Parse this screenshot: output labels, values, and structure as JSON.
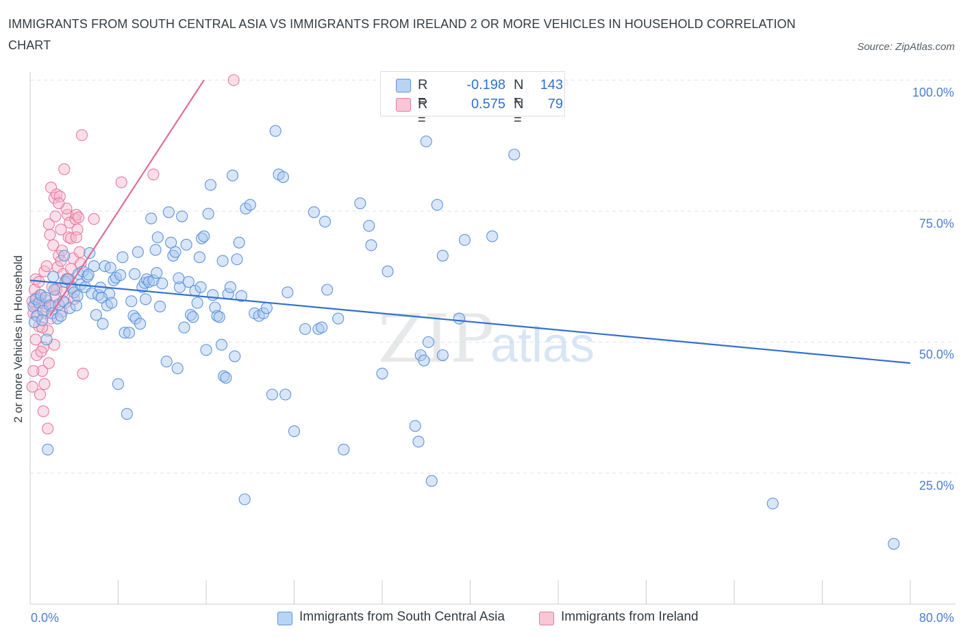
{
  "header": {
    "title": "IMMIGRANTS FROM SOUTH CENTRAL ASIA VS IMMIGRANTS FROM IRELAND 2 OR MORE VEHICLES IN HOUSEHOLD CORRELATION CHART",
    "source": "Source: ZipAtlas.com"
  },
  "legend": {
    "r_label": "R =",
    "n_label": "N =",
    "rows": [
      {
        "r": "-0.198",
        "n": "143"
      },
      {
        "r": "0.575",
        "n": "79"
      }
    ]
  },
  "bottom_legend": {
    "items": [
      {
        "label": "Immigrants from South Central Asia"
      },
      {
        "label": "Immigrants from Ireland"
      }
    ]
  },
  "watermark": {
    "zip": "ZIP",
    "atlas": "atlas"
  },
  "colors": {
    "blue_fill": "#a9c7f0",
    "blue_stroke": "#5d93dc",
    "blue_line": "#2f6fd1",
    "pink_fill": "#f6b9cc",
    "pink_stroke": "#e8799d",
    "pink_line": "#e06b94",
    "axis_text": "#4a7ed0",
    "grid": "#dde1e5"
  },
  "chart_data": {
    "type": "scatter",
    "title": "IMMIGRANTS FROM SOUTH CENTRAL ASIA VS IMMIGRANTS FROM IRELAND 2 OR MORE VEHICLES IN HOUSEHOLD CORRELATION CHART",
    "xlabel": "",
    "ylabel": "2 or more Vehicles in Household",
    "xlim": [
      0,
      80
    ],
    "ylim": [
      0,
      100
    ],
    "x_tick_labels": [
      "0.0%",
      "80.0%"
    ],
    "y_ticks": [
      25,
      50,
      75,
      100
    ],
    "y_tick_labels": [
      "25.0%",
      "50.0%",
      "75.0%",
      "100.0%"
    ],
    "grid": true,
    "legend_position": "top-center",
    "series": [
      {
        "name": "Immigrants from South Central Asia",
        "R": -0.198,
        "N": 143,
        "trend": [
          [
            0,
            61.8
          ],
          [
            80,
            46.0
          ]
        ],
        "points": [
          [
            0.3,
            56.8
          ],
          [
            0.5,
            58.2
          ],
          [
            0.6,
            55.0
          ],
          [
            0.8,
            57.5
          ],
          [
            1.0,
            59.0
          ],
          [
            1.2,
            56.0
          ],
          [
            1.4,
            58.5
          ],
          [
            1.5,
            50.5
          ],
          [
            1.6,
            29.5
          ],
          [
            1.8,
            57.0
          ],
          [
            2.0,
            55.5
          ],
          [
            2.2,
            60.0
          ],
          [
            2.5,
            54.5
          ],
          [
            2.6,
            57.2
          ],
          [
            2.8,
            55.0
          ],
          [
            3.0,
            57.8
          ],
          [
            3.2,
            61.5
          ],
          [
            3.4,
            62.0
          ],
          [
            3.6,
            56.5
          ],
          [
            3.8,
            60.3
          ],
          [
            4.0,
            59.5
          ],
          [
            4.2,
            57.0
          ],
          [
            4.4,
            63.0
          ],
          [
            4.6,
            61.0
          ],
          [
            4.8,
            63.5
          ],
          [
            5.0,
            60.5
          ],
          [
            5.2,
            62.5
          ],
          [
            5.4,
            67.0
          ],
          [
            5.6,
            59.3
          ],
          [
            5.8,
            64.5
          ],
          [
            6.0,
            55.2
          ],
          [
            6.2,
            59.0
          ],
          [
            6.4,
            60.4
          ],
          [
            6.6,
            53.5
          ],
          [
            6.8,
            64.5
          ],
          [
            7.0,
            57.0
          ],
          [
            7.2,
            59.2
          ],
          [
            7.4,
            57.5
          ],
          [
            7.6,
            61.8
          ],
          [
            7.8,
            62.3
          ],
          [
            8.0,
            42.0
          ],
          [
            8.2,
            62.8
          ],
          [
            8.4,
            66.2
          ],
          [
            8.6,
            51.8
          ],
          [
            8.8,
            36.3
          ],
          [
            9.0,
            51.8
          ],
          [
            9.2,
            57.8
          ],
          [
            9.4,
            55.0
          ],
          [
            9.6,
            54.5
          ],
          [
            9.8,
            67.2
          ],
          [
            10.0,
            53.5
          ],
          [
            10.2,
            60.5
          ],
          [
            10.4,
            61.3
          ],
          [
            10.6,
            62.0
          ],
          [
            10.8,
            61.5
          ],
          [
            11.0,
            73.6
          ],
          [
            11.2,
            61.8
          ],
          [
            11.4,
            67.6
          ],
          [
            11.6,
            70.0
          ],
          [
            11.8,
            56.8
          ],
          [
            12.0,
            61.2
          ],
          [
            12.4,
            46.3
          ],
          [
            12.6,
            74.8
          ],
          [
            12.8,
            69.0
          ],
          [
            13.0,
            66.5
          ],
          [
            13.2,
            67.2
          ],
          [
            13.4,
            45.0
          ],
          [
            13.6,
            60.5
          ],
          [
            13.8,
            74.0
          ],
          [
            14.0,
            52.8
          ],
          [
            14.2,
            68.6
          ],
          [
            14.4,
            61.5
          ],
          [
            14.6,
            55.2
          ],
          [
            14.8,
            54.8
          ],
          [
            15.0,
            59.8
          ],
          [
            15.2,
            57.5
          ],
          [
            15.4,
            66.2
          ],
          [
            15.6,
            69.8
          ],
          [
            15.8,
            70.2
          ],
          [
            16.0,
            48.5
          ],
          [
            16.2,
            74.5
          ],
          [
            16.4,
            80.0
          ],
          [
            16.6,
            59.0
          ],
          [
            16.8,
            56.6
          ],
          [
            17.0,
            55.0
          ],
          [
            17.2,
            54.8
          ],
          [
            17.4,
            49.5
          ],
          [
            17.6,
            43.5
          ],
          [
            17.8,
            43.2
          ],
          [
            18.0,
            59.2
          ],
          [
            18.2,
            60.5
          ],
          [
            18.4,
            81.8
          ],
          [
            18.6,
            47.3
          ],
          [
            18.8,
            65.8
          ],
          [
            19.0,
            69.0
          ],
          [
            19.5,
            20.0
          ],
          [
            19.6,
            75.5
          ],
          [
            20.0,
            76.2
          ],
          [
            20.4,
            55.5
          ],
          [
            20.8,
            55.0
          ],
          [
            21.2,
            55.5
          ],
          [
            21.5,
            56.5
          ],
          [
            22.0,
            40.0
          ],
          [
            22.3,
            90.3
          ],
          [
            22.6,
            82.0
          ],
          [
            23.0,
            81.5
          ],
          [
            23.2,
            40.0
          ],
          [
            23.4,
            59.5
          ],
          [
            24.0,
            33.0
          ],
          [
            25.0,
            52.5
          ],
          [
            25.8,
            74.8
          ],
          [
            26.2,
            52.5
          ],
          [
            26.5,
            52.8
          ],
          [
            26.8,
            73.0
          ],
          [
            27.0,
            60.0
          ],
          [
            28.0,
            54.5
          ],
          [
            28.5,
            29.5
          ],
          [
            30.0,
            76.5
          ],
          [
            30.8,
            72.2
          ],
          [
            31.0,
            68.5
          ],
          [
            32.0,
            44.0
          ],
          [
            32.5,
            63.5
          ],
          [
            35.0,
            34.0
          ],
          [
            35.3,
            31.0
          ],
          [
            35.5,
            47.5
          ],
          [
            35.8,
            46.5
          ],
          [
            36.0,
            88.3
          ],
          [
            36.2,
            50.0
          ],
          [
            36.5,
            23.5
          ],
          [
            37.5,
            47.5
          ],
          [
            37.0,
            76.2
          ],
          [
            37.5,
            66.5
          ],
          [
            39.0,
            54.5
          ],
          [
            39.5,
            69.5
          ],
          [
            42.0,
            70.2
          ],
          [
            44.0,
            85.8
          ],
          [
            67.5,
            19.2
          ],
          [
            78.5,
            11.5
          ],
          [
            0.4,
            53.8
          ],
          [
            1.1,
            54.2
          ],
          [
            2.1,
            62.5
          ],
          [
            3.1,
            66.5
          ],
          [
            4.3,
            58.8
          ],
          [
            5.3,
            62.9
          ],
          [
            6.5,
            58.5
          ],
          [
            7.3,
            64.2
          ],
          [
            9.5,
            63.0
          ],
          [
            10.5,
            58.2
          ],
          [
            11.5,
            63.2
          ],
          [
            13.5,
            62.2
          ],
          [
            15.5,
            60.5
          ],
          [
            17.5,
            65.5
          ],
          [
            19.2,
            58.8
          ]
        ]
      },
      {
        "name": "Immigrants from Ireland",
        "R": 0.575,
        "N": 79,
        "trend": [
          [
            1.8,
            55.0
          ],
          [
            15.8,
            100.0
          ]
        ],
        "points": [
          [
            0.2,
            41.5
          ],
          [
            0.3,
            55.5
          ],
          [
            0.4,
            57.2
          ],
          [
            0.5,
            50.5
          ],
          [
            0.6,
            47.5
          ],
          [
            0.7,
            55.0
          ],
          [
            0.8,
            53.0
          ],
          [
            0.9,
            40.0
          ],
          [
            1.0,
            57.5
          ],
          [
            1.1,
            44.5
          ],
          [
            1.2,
            49.0
          ],
          [
            1.3,
            42.0
          ],
          [
            1.4,
            55.5
          ],
          [
            1.5,
            58.0
          ],
          [
            1.6,
            52.2
          ],
          [
            1.7,
            72.5
          ],
          [
            1.8,
            70.5
          ],
          [
            1.9,
            79.5
          ],
          [
            2.0,
            60.5
          ],
          [
            2.1,
            68.5
          ],
          [
            2.2,
            77.5
          ],
          [
            2.3,
            74.0
          ],
          [
            2.4,
            78.2
          ],
          [
            2.5,
            64.3
          ],
          [
            2.6,
            66.5
          ],
          [
            2.7,
            77.8
          ],
          [
            2.8,
            71.5
          ],
          [
            2.9,
            67.5
          ],
          [
            3.0,
            63.0
          ],
          [
            3.1,
            83.0
          ],
          [
            3.2,
            57.5
          ],
          [
            3.3,
            62.0
          ],
          [
            3.4,
            74.3
          ],
          [
            3.5,
            70.0
          ],
          [
            3.6,
            72.8
          ],
          [
            3.7,
            64.0
          ],
          [
            3.8,
            60.5
          ],
          [
            3.9,
            66.0
          ],
          [
            4.0,
            58.2
          ],
          [
            4.1,
            73.5
          ],
          [
            4.2,
            74.3
          ],
          [
            4.3,
            71.5
          ],
          [
            4.4,
            73.8
          ],
          [
            4.5,
            67.2
          ],
          [
            4.6,
            65.0
          ],
          [
            4.7,
            89.5
          ],
          [
            4.8,
            44.0
          ],
          [
            1.2,
            36.8
          ],
          [
            1.6,
            33.5
          ],
          [
            2.2,
            49.5
          ],
          [
            0.5,
            62.0
          ],
          [
            0.9,
            59.0
          ],
          [
            1.3,
            63.5
          ],
          [
            1.9,
            54.5
          ],
          [
            2.4,
            60.0
          ],
          [
            2.9,
            55.8
          ],
          [
            3.3,
            75.5
          ],
          [
            3.7,
            69.8
          ],
          [
            4.2,
            70.0
          ],
          [
            5.8,
            73.5
          ],
          [
            8.3,
            80.5
          ],
          [
            11.2,
            82.0
          ],
          [
            18.5,
            100.0
          ],
          [
            0.3,
            44.5
          ],
          [
            0.6,
            58.5
          ],
          [
            1.0,
            48.2
          ],
          [
            1.5,
            64.5
          ],
          [
            2.0,
            56.8
          ],
          [
            2.6,
            76.5
          ],
          [
            3.0,
            59.5
          ],
          [
            0.4,
            60.0
          ],
          [
            0.8,
            61.5
          ],
          [
            1.1,
            52.8
          ],
          [
            1.4,
            56.8
          ],
          [
            1.7,
            46.0
          ],
          [
            2.3,
            58.8
          ],
          [
            2.8,
            65.5
          ],
          [
            3.5,
            62.0
          ],
          [
            0.2,
            57.8
          ]
        ]
      }
    ]
  }
}
